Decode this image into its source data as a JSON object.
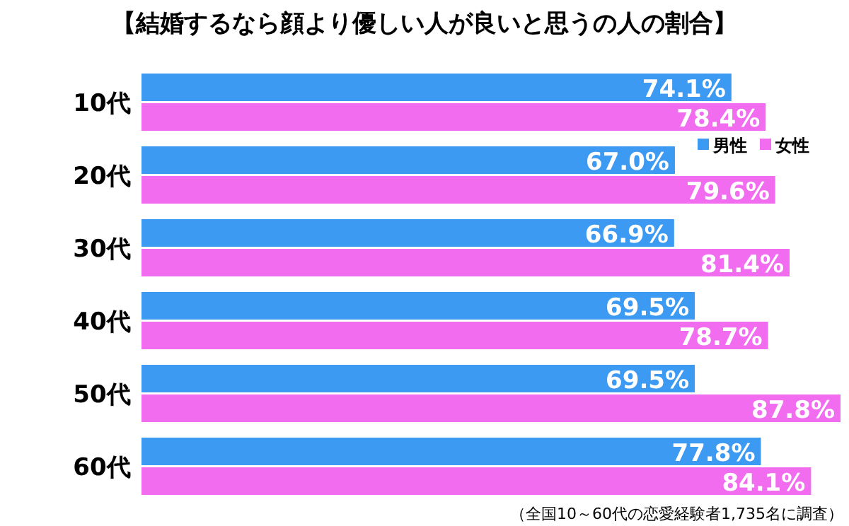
{
  "chart_data": {
    "type": "bar",
    "orientation": "horizontal",
    "title": "【結婚するなら顔より優しい人が良いと思うの人の割合】",
    "categories": [
      "10代",
      "20代",
      "30代",
      "40代",
      "50代",
      "60代"
    ],
    "series": [
      {
        "name": "男性",
        "color": "#3d9af2",
        "values": [
          74.1,
          67.0,
          66.9,
          69.5,
          69.5,
          77.8
        ],
        "value_labels": [
          "74.1%",
          "67.0%",
          "66.9%",
          "69.5%",
          "69.5%",
          "77.8%"
        ]
      },
      {
        "name": "女性",
        "color": "#f26cf0",
        "values": [
          78.4,
          79.6,
          81.4,
          78.7,
          87.8,
          84.1
        ],
        "value_labels": [
          "78.4%",
          "79.6%",
          "81.4%",
          "78.7%",
          "87.8%",
          "84.1%"
        ]
      }
    ],
    "legend": "top right",
    "annotations": [
      "（全国10～60代の恋愛経験者1,735名に調査）"
    ]
  }
}
